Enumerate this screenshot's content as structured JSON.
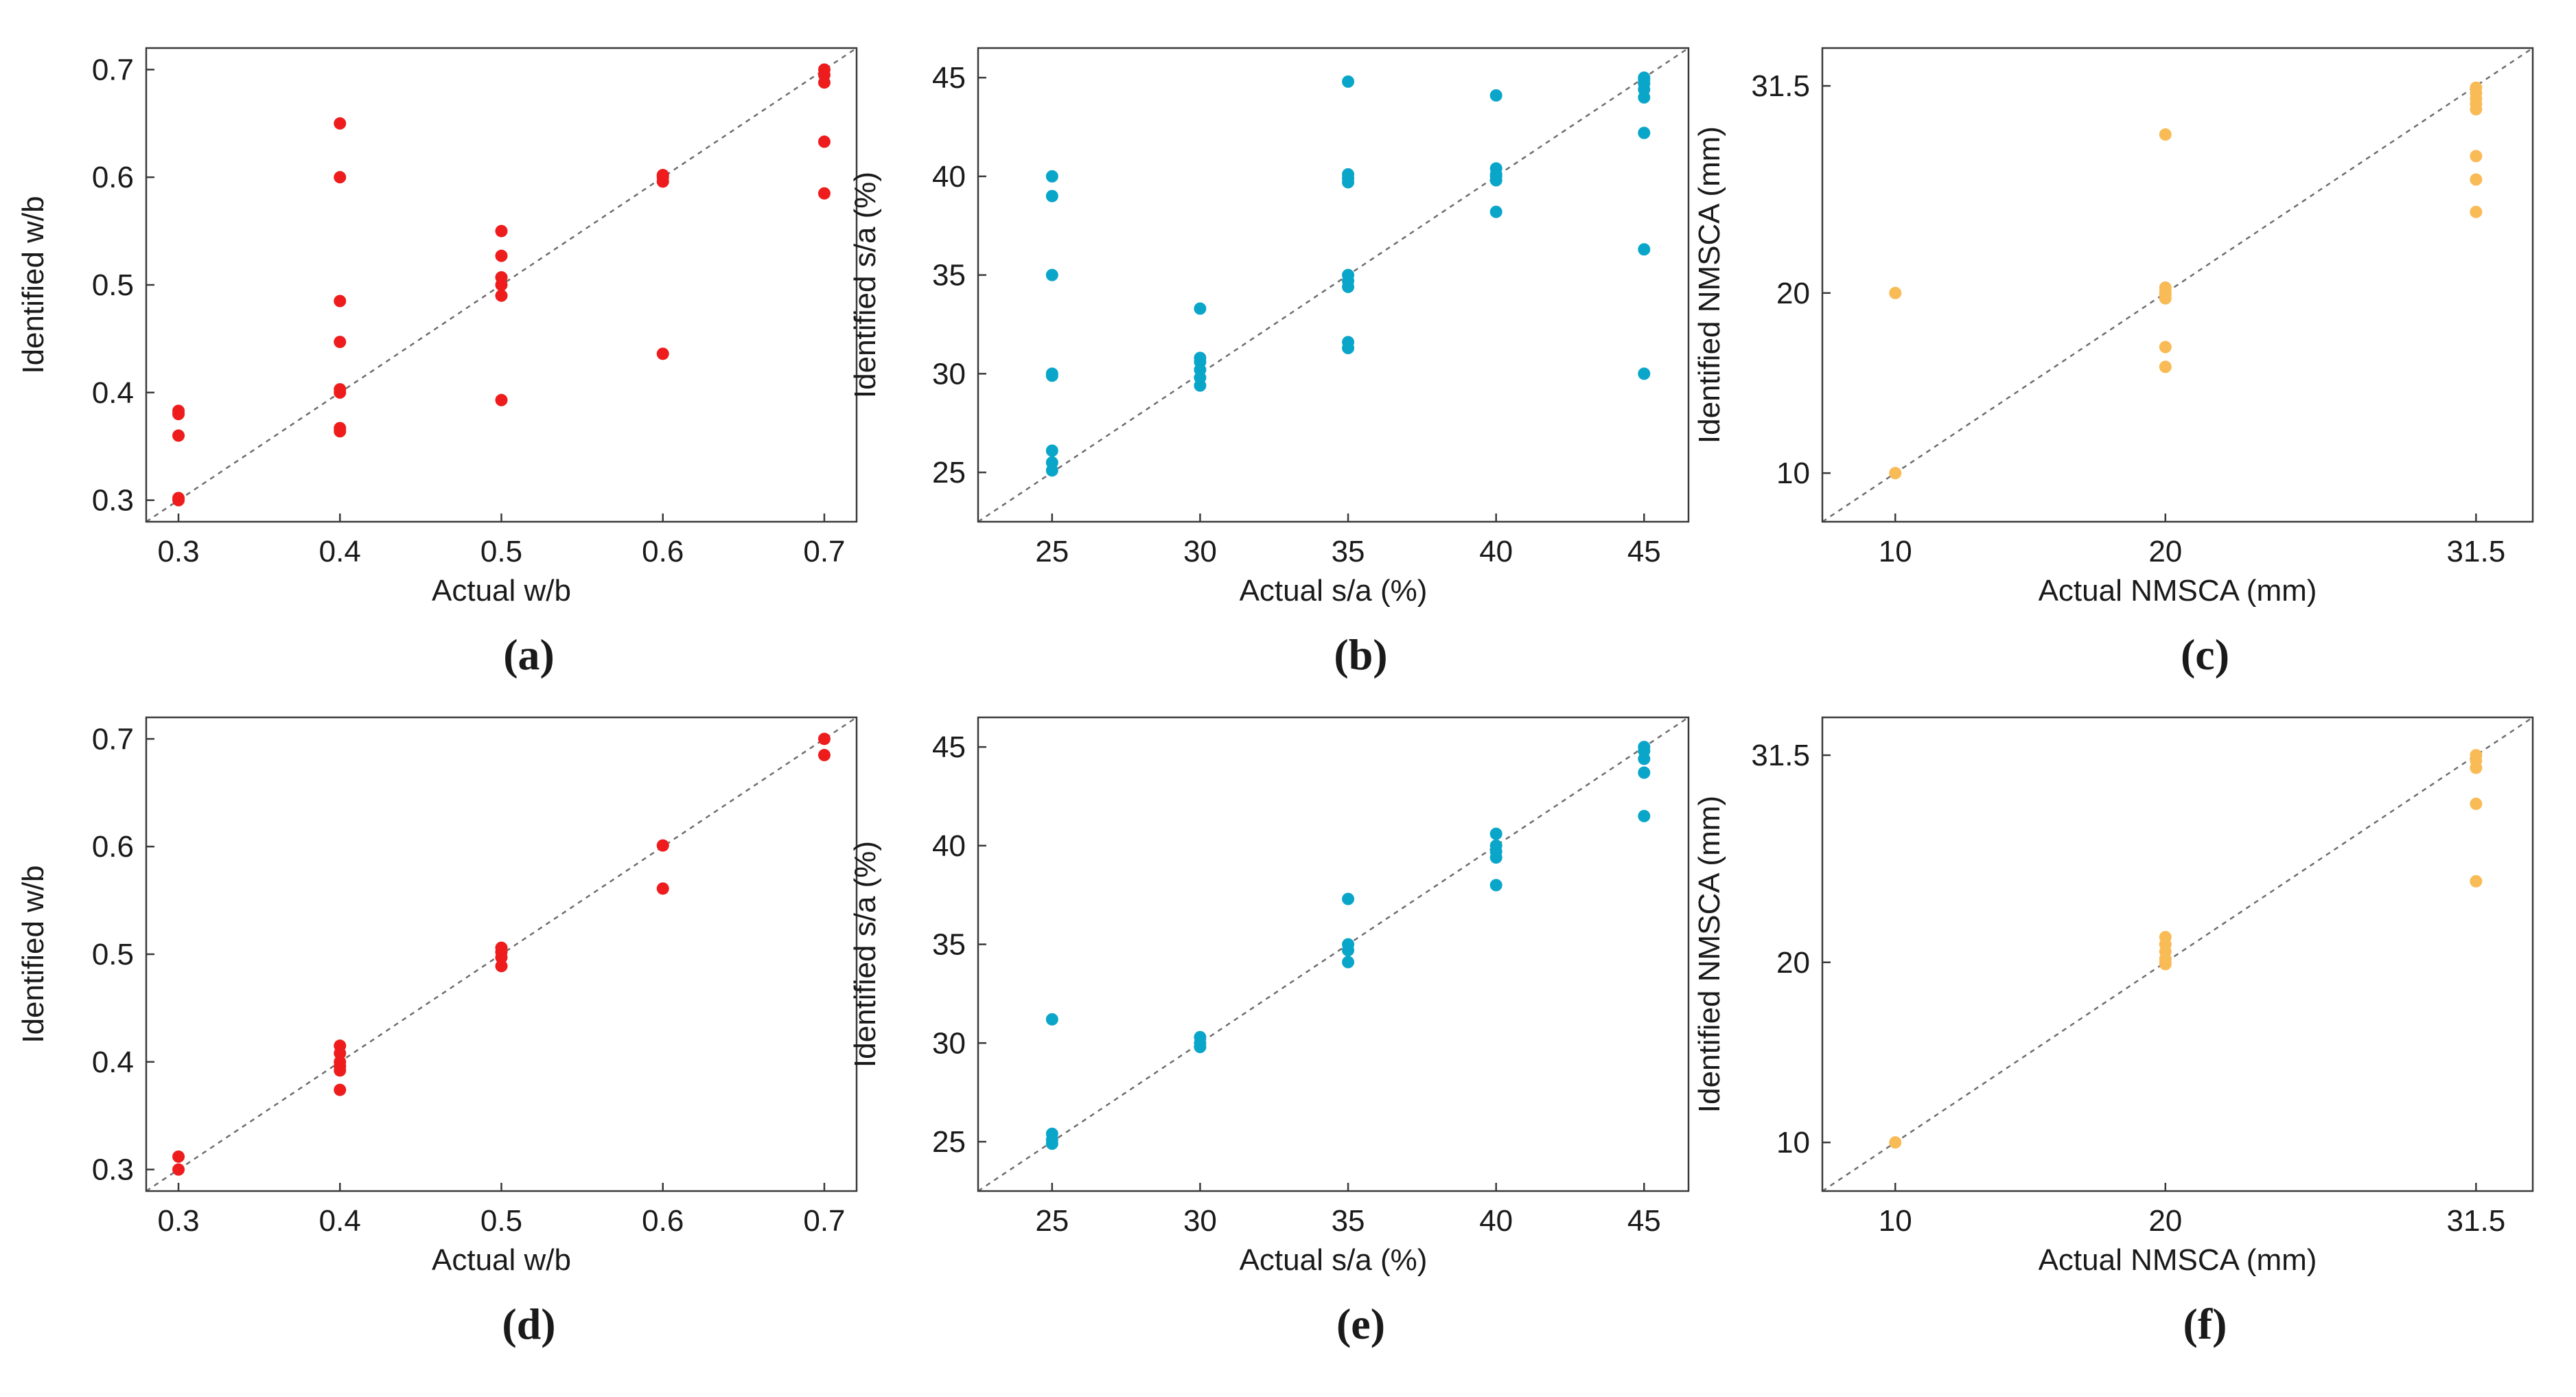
{
  "chart_data": [
    {
      "type": "scatter",
      "panel_label": "(a)",
      "xlabel": "Actual w/b",
      "ylabel": "Identified w/b",
      "color": "#ee1c1c",
      "xlim": [
        0.28,
        0.72
      ],
      "ylim": [
        0.28,
        0.72
      ],
      "xticks": [
        0.3,
        0.4,
        0.5,
        0.6,
        0.7
      ],
      "xtick_labels": [
        "0.3",
        "0.4",
        "0.5",
        "0.6",
        "0.7"
      ],
      "yticks": [
        0.3,
        0.4,
        0.5,
        0.6,
        0.7
      ],
      "ytick_labels": [
        "0.3",
        "0.4",
        "0.5",
        "0.6",
        "0.7"
      ],
      "x": [
        0.3,
        0.3,
        0.3,
        0.3,
        0.3,
        0.4,
        0.4,
        0.4,
        0.4,
        0.4,
        0.4,
        0.4,
        0.4,
        0.5,
        0.5,
        0.5,
        0.5,
        0.5,
        0.5,
        0.6,
        0.6,
        0.6,
        0.6,
        0.7,
        0.7,
        0.7,
        0.7,
        0.7
      ],
      "y": [
        0.3,
        0.36,
        0.38,
        0.383,
        0.302,
        0.65,
        0.6,
        0.485,
        0.447,
        0.403,
        0.4,
        0.367,
        0.364,
        0.55,
        0.527,
        0.507,
        0.5,
        0.49,
        0.393,
        0.6,
        0.596,
        0.602,
        0.436,
        0.7,
        0.695,
        0.688,
        0.633,
        0.585
      ]
    },
    {
      "type": "scatter",
      "panel_label": "(b)",
      "xlabel": "Actual s/a (%)",
      "ylabel": "Identified s/a (%)",
      "color": "#0aa6c9",
      "xlim": [
        22.5,
        46.5
      ],
      "ylim": [
        22.5,
        46.5
      ],
      "xticks": [
        25,
        30,
        35,
        40,
        45
      ],
      "xtick_labels": [
        "25",
        "30",
        "35",
        "40",
        "45"
      ],
      "yticks": [
        25,
        30,
        35,
        40,
        45
      ],
      "ytick_labels": [
        "25",
        "30",
        "35",
        "40",
        "45"
      ],
      "x": [
        25,
        25,
        25,
        25,
        25,
        25,
        25,
        25,
        30,
        30,
        30,
        30,
        30,
        30,
        35,
        35,
        35,
        35,
        35,
        35,
        35,
        35,
        35,
        40,
        40,
        40,
        40,
        40,
        40,
        45,
        45,
        45,
        45,
        45,
        45,
        45,
        45
      ],
      "y": [
        40,
        39,
        35,
        30,
        26.1,
        25.5,
        25.1,
        29.9,
        33.3,
        30.8,
        30.6,
        30.2,
        29.8,
        29.4,
        44.8,
        40.1,
        39.9,
        39.7,
        35.0,
        34.7,
        34.4,
        31.6,
        31.3,
        44.1,
        40.4,
        40.1,
        39.8,
        38.2,
        40.0,
        45.0,
        44.7,
        44.4,
        44.0,
        42.2,
        36.3,
        30.0,
        44.9
      ]
    },
    {
      "type": "scatter",
      "panel_label": "(c)",
      "xlabel": "Actual NMSCA (mm)",
      "ylabel": "Identified NMSCA (mm)",
      "color": "#f8bb55",
      "xlim": [
        7.3,
        33.6
      ],
      "ylim": [
        7.3,
        33.6
      ],
      "xticks": [
        10,
        20,
        31.5
      ],
      "xtick_labels": [
        "10",
        "20",
        "31.5"
      ],
      "yticks": [
        10,
        20,
        31.5
      ],
      "ytick_labels": [
        "10",
        "20",
        "31.5"
      ],
      "x": [
        10,
        10,
        20,
        20,
        20,
        20,
        20,
        20,
        20,
        20,
        31.5,
        31.5,
        31.5,
        31.5,
        31.5,
        31.5,
        31.5,
        31.5
      ],
      "y": [
        20.0,
        10.0,
        28.8,
        20.3,
        20.0,
        19.7,
        17.0,
        15.9,
        19.9,
        20.1,
        31.4,
        31.1,
        30.8,
        30.5,
        30.2,
        27.6,
        26.3,
        24.5
      ]
    },
    {
      "type": "scatter",
      "panel_label": "(d)",
      "xlabel": "Actual w/b",
      "ylabel": "Identified w/b",
      "color": "#ee1c1c",
      "xlim": [
        0.28,
        0.72
      ],
      "ylim": [
        0.28,
        0.72
      ],
      "xticks": [
        0.3,
        0.4,
        0.5,
        0.6,
        0.7
      ],
      "xtick_labels": [
        "0.3",
        "0.4",
        "0.5",
        "0.6",
        "0.7"
      ],
      "yticks": [
        0.3,
        0.4,
        0.5,
        0.6,
        0.7
      ],
      "ytick_labels": [
        "0.3",
        "0.4",
        "0.5",
        "0.6",
        "0.7"
      ],
      "x": [
        0.3,
        0.3,
        0.4,
        0.4,
        0.4,
        0.4,
        0.4,
        0.4,
        0.5,
        0.5,
        0.5,
        0.5,
        0.6,
        0.6,
        0.7,
        0.7
      ],
      "y": [
        0.312,
        0.3,
        0.415,
        0.408,
        0.4,
        0.396,
        0.392,
        0.374,
        0.506,
        0.502,
        0.497,
        0.489,
        0.601,
        0.561,
        0.7,
        0.685
      ]
    },
    {
      "type": "scatter",
      "panel_label": "(e)",
      "xlabel": "Actual s/a (%)",
      "ylabel": "Identified s/a (%)",
      "color": "#0aa6c9",
      "xlim": [
        22.5,
        46.5
      ],
      "ylim": [
        22.5,
        46.5
      ],
      "xticks": [
        25,
        30,
        35,
        40,
        45
      ],
      "xtick_labels": [
        "25",
        "30",
        "35",
        "40",
        "45"
      ],
      "yticks": [
        25,
        30,
        35,
        40,
        45
      ],
      "ytick_labels": [
        "25",
        "30",
        "35",
        "40",
        "45"
      ],
      "x": [
        25,
        25,
        25,
        25,
        30,
        30,
        30,
        35,
        35,
        35,
        35,
        40,
        40,
        40,
        40,
        40,
        45,
        45,
        45,
        45,
        45
      ],
      "y": [
        31.2,
        25.4,
        25.1,
        24.9,
        30.3,
        30.0,
        29.8,
        37.3,
        35.0,
        34.7,
        34.1,
        40.6,
        40.0,
        39.7,
        39.4,
        38.0,
        45.0,
        44.8,
        44.4,
        43.7,
        41.5
      ]
    },
    {
      "type": "scatter",
      "panel_label": "(f)",
      "xlabel": "Actual NMSCA (mm)",
      "ylabel": "Identified NMSCA (mm)",
      "color": "#f8bb55",
      "xlim": [
        7.3,
        33.6
      ],
      "ylim": [
        7.3,
        33.6
      ],
      "xticks": [
        10,
        20,
        31.5
      ],
      "xtick_labels": [
        "10",
        "20",
        "31.5"
      ],
      "yticks": [
        10,
        20,
        31.5
      ],
      "ytick_labels": [
        "10",
        "20",
        "31.5"
      ],
      "x": [
        10,
        20,
        20,
        20,
        20,
        20,
        20,
        31.5,
        31.5,
        31.5,
        31.5,
        31.5
      ],
      "y": [
        10.0,
        21.4,
        21.0,
        20.6,
        20.2,
        19.9,
        20.0,
        31.5,
        31.2,
        30.8,
        28.8,
        24.5
      ]
    }
  ]
}
